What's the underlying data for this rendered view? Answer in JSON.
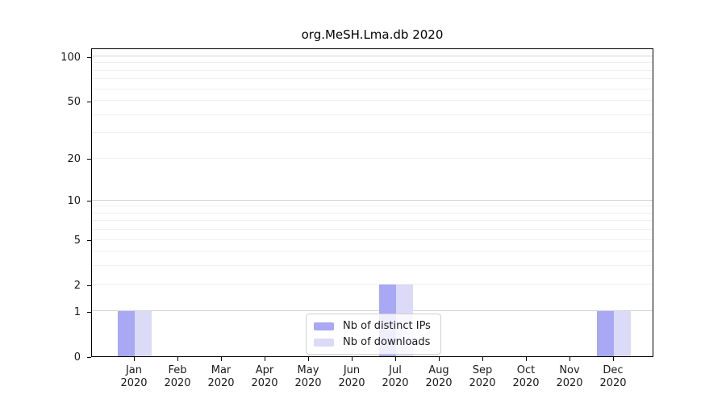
{
  "chart_data": {
    "type": "bar",
    "title": "org.MeSH.Lma.db 2020",
    "categories": [
      "Jan 2020",
      "Feb 2020",
      "Mar 2020",
      "Apr 2020",
      "May 2020",
      "Jun 2020",
      "Jul 2020",
      "Aug 2020",
      "Sep 2020",
      "Oct 2020",
      "Nov 2020",
      "Dec 2020"
    ],
    "series": [
      {
        "name": "Nb of distinct IPs",
        "color": "#a8a8f5",
        "values": [
          1,
          0,
          0,
          0,
          0,
          0,
          2,
          0,
          0,
          0,
          0,
          1
        ]
      },
      {
        "name": "Nb of downloads",
        "color": "#dbdbf8",
        "values": [
          1,
          0,
          0,
          0,
          0,
          0,
          2,
          0,
          0,
          0,
          0,
          1
        ]
      }
    ],
    "y_axis": {
      "scale": "log1p",
      "tick_values": [
        0,
        1,
        2,
        5,
        10,
        20,
        50,
        100
      ],
      "tick_labels": [
        "0",
        "1",
        "2",
        "5",
        "10",
        "20",
        "50",
        "100"
      ],
      "minor_grid_values": [
        2,
        3,
        4,
        5,
        6,
        7,
        8,
        9,
        20,
        30,
        40,
        50,
        60,
        70,
        80,
        90
      ],
      "major_grid_values": [
        1,
        10,
        100
      ],
      "ylim": [
        0,
        115
      ]
    },
    "legend": {
      "position": "bottom-center",
      "entries": [
        "Nb of distinct IPs",
        "Nb of downloads"
      ]
    },
    "grid": "horizontal",
    "colors": {
      "axis": "#000000",
      "major_grid": "#d4d4d4",
      "minor_grid": "#f0f0f0",
      "background": "#ffffff"
    }
  }
}
